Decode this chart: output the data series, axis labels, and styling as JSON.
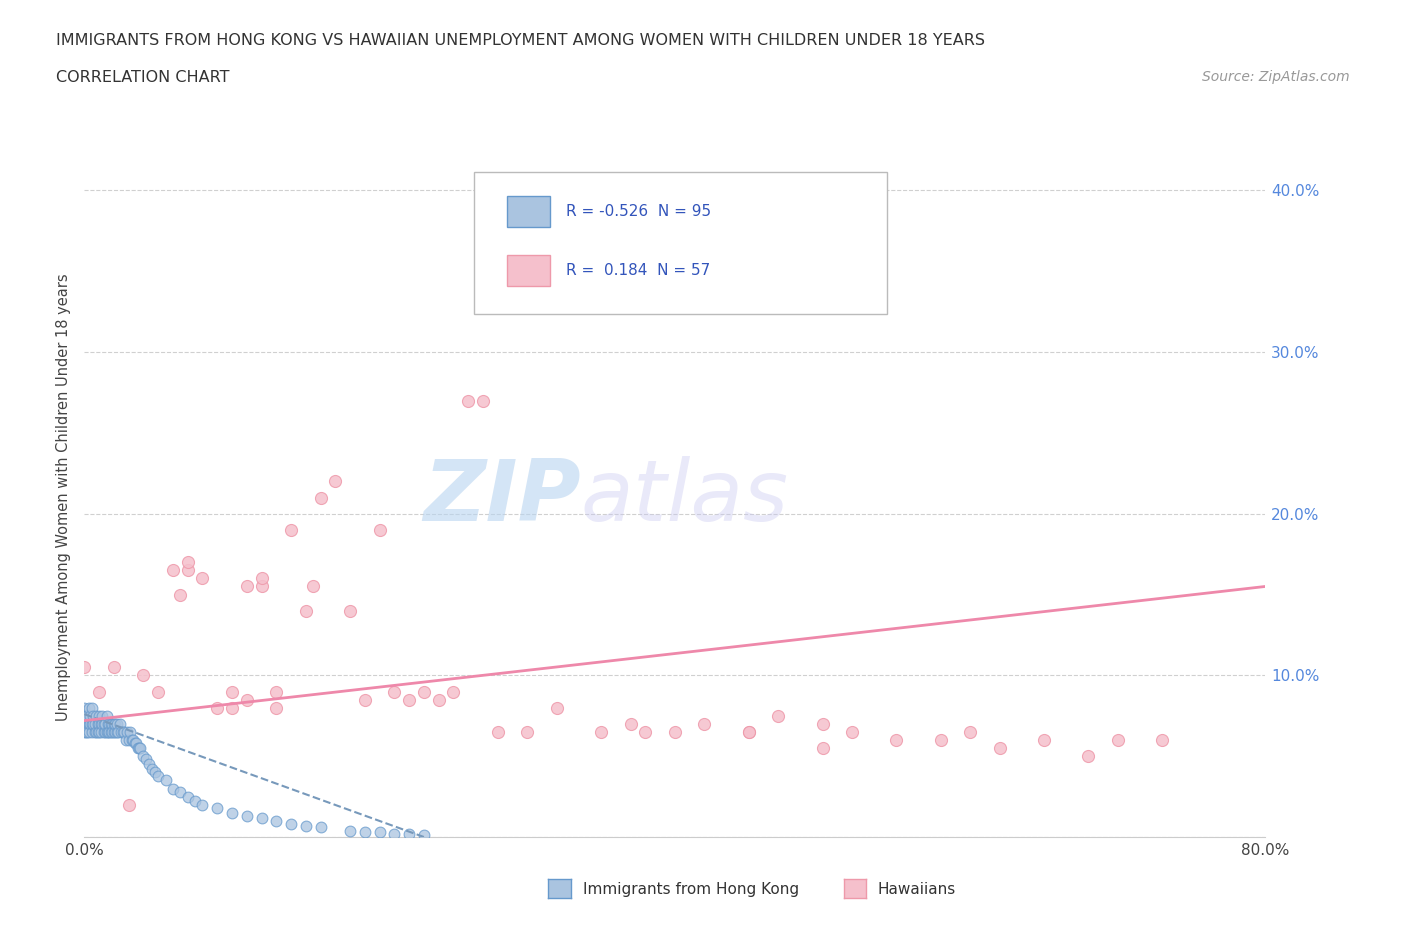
{
  "title_line1": "IMMIGRANTS FROM HONG KONG VS HAWAIIAN UNEMPLOYMENT AMONG WOMEN WITH CHILDREN UNDER 18 YEARS",
  "title_line2": "CORRELATION CHART",
  "source_text": "Source: ZipAtlas.com",
  "ylabel": "Unemployment Among Women with Children Under 18 years",
  "xlim": [
    0.0,
    0.8
  ],
  "ylim": [
    0.0,
    0.42
  ],
  "xticks": [
    0.0,
    0.1,
    0.2,
    0.3,
    0.4,
    0.5,
    0.6,
    0.7,
    0.8
  ],
  "xtick_labels": [
    "0.0%",
    "",
    "",
    "",
    "",
    "",
    "",
    "",
    "80.0%"
  ],
  "yticks": [
    0.1,
    0.2,
    0.3,
    0.4
  ],
  "ytick_labels": [
    "10.0%",
    "20.0%",
    "30.0%",
    "40.0%"
  ],
  "hk_R": -0.526,
  "hk_N": 95,
  "hw_R": 0.184,
  "hw_N": 57,
  "background_color": "#ffffff",
  "grid_color": "#d0d0d0",
  "watermark_zip": "ZIP",
  "watermark_atlas": "atlas",
  "hk_color": "#aac4e0",
  "hk_edge_color": "#6699cc",
  "hw_color": "#f5c0cc",
  "hw_edge_color": "#ee99aa",
  "hk_line_color": "#7799bb",
  "hw_line_color": "#ee88aa",
  "hk_points_x": [
    0.0,
    0.0,
    0.0,
    0.0,
    0.001,
    0.001,
    0.001,
    0.002,
    0.002,
    0.002,
    0.003,
    0.003,
    0.003,
    0.004,
    0.004,
    0.005,
    0.005,
    0.005,
    0.006,
    0.006,
    0.007,
    0.007,
    0.008,
    0.008,
    0.009,
    0.009,
    0.01,
    0.01,
    0.01,
    0.011,
    0.011,
    0.012,
    0.012,
    0.013,
    0.013,
    0.014,
    0.014,
    0.015,
    0.015,
    0.016,
    0.016,
    0.017,
    0.017,
    0.018,
    0.018,
    0.019,
    0.019,
    0.02,
    0.02,
    0.021,
    0.021,
    0.022,
    0.022,
    0.023,
    0.024,
    0.025,
    0.026,
    0.027,
    0.028,
    0.029,
    0.03,
    0.031,
    0.032,
    0.033,
    0.034,
    0.035,
    0.036,
    0.037,
    0.038,
    0.04,
    0.042,
    0.044,
    0.046,
    0.048,
    0.05,
    0.055,
    0.06,
    0.065,
    0.07,
    0.075,
    0.08,
    0.09,
    0.1,
    0.11,
    0.12,
    0.13,
    0.14,
    0.15,
    0.16,
    0.18,
    0.19,
    0.2,
    0.21,
    0.22,
    0.23
  ],
  "hk_points_y": [
    0.07,
    0.075,
    0.08,
    0.065,
    0.07,
    0.065,
    0.075,
    0.07,
    0.065,
    0.075,
    0.07,
    0.065,
    0.08,
    0.07,
    0.075,
    0.065,
    0.07,
    0.08,
    0.07,
    0.075,
    0.065,
    0.07,
    0.075,
    0.065,
    0.07,
    0.065,
    0.07,
    0.075,
    0.065,
    0.07,
    0.065,
    0.075,
    0.07,
    0.065,
    0.07,
    0.065,
    0.07,
    0.075,
    0.065,
    0.07,
    0.065,
    0.07,
    0.065,
    0.07,
    0.065,
    0.07,
    0.065,
    0.065,
    0.07,
    0.065,
    0.07,
    0.065,
    0.07,
    0.065,
    0.07,
    0.065,
    0.065,
    0.065,
    0.06,
    0.065,
    0.06,
    0.065,
    0.06,
    0.06,
    0.058,
    0.058,
    0.055,
    0.055,
    0.055,
    0.05,
    0.048,
    0.045,
    0.042,
    0.04,
    0.038,
    0.035,
    0.03,
    0.028,
    0.025,
    0.022,
    0.02,
    0.018,
    0.015,
    0.013,
    0.012,
    0.01,
    0.008,
    0.007,
    0.006,
    0.004,
    0.003,
    0.003,
    0.002,
    0.002,
    0.001
  ],
  "hw_points_x": [
    0.0,
    0.01,
    0.02,
    0.03,
    0.04,
    0.05,
    0.06,
    0.065,
    0.07,
    0.07,
    0.08,
    0.09,
    0.1,
    0.1,
    0.11,
    0.11,
    0.12,
    0.12,
    0.13,
    0.13,
    0.14,
    0.15,
    0.155,
    0.16,
    0.17,
    0.18,
    0.19,
    0.2,
    0.21,
    0.22,
    0.23,
    0.24,
    0.25,
    0.26,
    0.27,
    0.28,
    0.3,
    0.32,
    0.35,
    0.37,
    0.38,
    0.4,
    0.42,
    0.45,
    0.45,
    0.47,
    0.5,
    0.5,
    0.52,
    0.55,
    0.58,
    0.6,
    0.62,
    0.65,
    0.68,
    0.7,
    0.73
  ],
  "hw_points_y": [
    0.105,
    0.09,
    0.105,
    0.02,
    0.1,
    0.09,
    0.165,
    0.15,
    0.165,
    0.17,
    0.16,
    0.08,
    0.08,
    0.09,
    0.085,
    0.155,
    0.155,
    0.16,
    0.08,
    0.09,
    0.19,
    0.14,
    0.155,
    0.21,
    0.22,
    0.14,
    0.085,
    0.19,
    0.09,
    0.085,
    0.09,
    0.085,
    0.09,
    0.27,
    0.27,
    0.065,
    0.065,
    0.08,
    0.065,
    0.07,
    0.065,
    0.065,
    0.07,
    0.065,
    0.065,
    0.075,
    0.055,
    0.07,
    0.065,
    0.06,
    0.06,
    0.065,
    0.055,
    0.06,
    0.05,
    0.06,
    0.06
  ],
  "hw_line_start_x": 0.0,
  "hw_line_start_y": 0.072,
  "hw_line_end_x": 0.8,
  "hw_line_end_y": 0.155,
  "hk_line_start_x": 0.0,
  "hk_line_start_y": 0.076,
  "hk_line_end_x": 0.23,
  "hk_line_end_y": 0.0
}
